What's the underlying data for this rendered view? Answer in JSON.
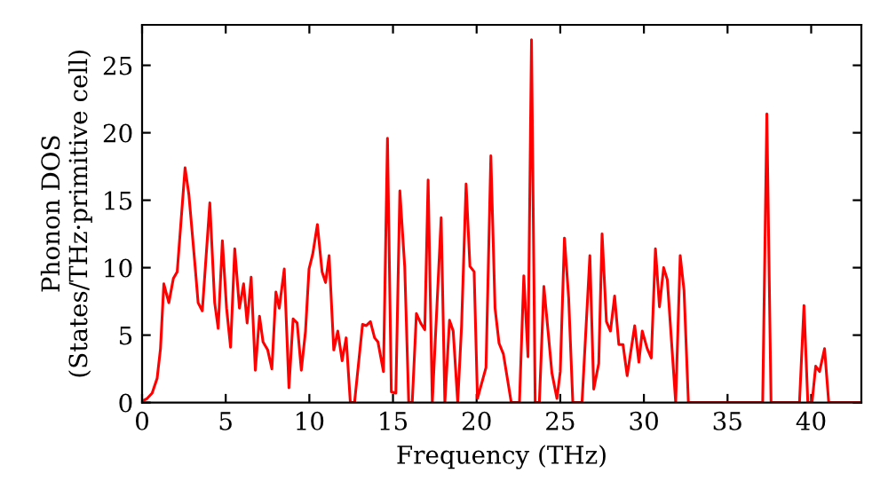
{
  "chart_data": {
    "type": "line",
    "xlabel": "Frequency (THz)",
    "ylabel": "Phonon DOS\n(States/THz·primitive cell)",
    "xlim": [
      0,
      43
    ],
    "ylim": [
      0,
      28
    ],
    "xticks": [
      0,
      5,
      10,
      15,
      20,
      25,
      30,
      35,
      40
    ],
    "yticks": [
      0,
      5,
      10,
      15,
      20,
      25
    ],
    "grid": false,
    "marker": "none",
    "line_style": "solid",
    "series": [
      {
        "color": "#ff0000",
        "x": [
          0,
          0.3,
          0.6,
          0.9,
          1.1,
          1.3,
          1.6,
          1.87,
          2.1,
          2.57,
          2.8,
          3.17,
          3.35,
          3.6,
          4.05,
          4.34,
          4.55,
          4.8,
          5.05,
          5.29,
          5.54,
          5.82,
          6.07,
          6.28,
          6.52,
          6.77,
          7.02,
          7.23,
          7.51,
          7.76,
          8.0,
          8.2,
          8.5,
          8.78,
          9.03,
          9.27,
          9.52,
          9.77,
          9.98,
          10.2,
          10.48,
          10.76,
          10.97,
          11.18,
          11.46,
          11.7,
          11.96,
          12.2,
          12.45,
          12.7,
          13.18,
          13.4,
          13.65,
          13.9,
          14.1,
          14.43,
          14.67,
          14.9,
          15.17,
          15.41,
          15.7,
          15.94,
          16.15,
          16.4,
          16.65,
          16.9,
          17.1,
          17.35,
          17.88,
          18.1,
          18.38,
          18.6,
          18.87,
          19.1,
          19.37,
          19.6,
          19.85,
          20.05,
          20.56,
          20.85,
          21.1,
          21.34,
          21.6,
          22.07,
          22.56,
          22.82,
          23.07,
          23.28,
          23.5,
          23.75,
          24.02,
          24.27,
          24.5,
          24.8,
          25.0,
          25.25,
          25.5,
          25.75,
          26.3,
          26.77,
          27.0,
          27.3,
          27.5,
          27.76,
          28.0,
          28.25,
          28.5,
          28.75,
          29.0,
          29.45,
          29.7,
          29.9,
          30.2,
          30.44,
          30.69,
          30.93,
          31.18,
          31.4,
          31.9,
          32.17,
          32.4,
          32.66,
          37.1,
          37.35,
          37.6,
          39.3,
          39.57,
          39.8,
          40.05,
          40.27,
          40.5,
          40.8,
          41.05,
          43
        ],
        "values": [
          0.1,
          0.3,
          0.7,
          1.8,
          4,
          8.8,
          7.4,
          9.2,
          9.7,
          17.4,
          15.4,
          10.1,
          7.4,
          6.8,
          14.8,
          7.4,
          5.5,
          12,
          7,
          4.1,
          11.4,
          7,
          8.8,
          5.9,
          9.3,
          2.4,
          6.4,
          4.5,
          3.9,
          2.5,
          8.2,
          7,
          9.9,
          1.1,
          6.2,
          5.9,
          2.4,
          5.3,
          9.9,
          11,
          13.2,
          9.7,
          8.9,
          10.9,
          3.9,
          5.3,
          3.1,
          4.8,
          0,
          0,
          5.8,
          5.7,
          6,
          4.8,
          4.5,
          2.3,
          19.6,
          0.8,
          0.7,
          15.7,
          10.1,
          0,
          0,
          6.6,
          5.9,
          5.4,
          16.5,
          0,
          13.7,
          0,
          6.1,
          5.3,
          0,
          5.7,
          16.2,
          10.1,
          9.7,
          0.3,
          2.6,
          18.3,
          7,
          4.4,
          3.6,
          0,
          0,
          9.4,
          3.4,
          26.9,
          0,
          0,
          8.6,
          5.3,
          2.2,
          0.3,
          2.3,
          12.2,
          7.8,
          0,
          0,
          10.9,
          1,
          2.9,
          12.5,
          6,
          5.3,
          7.9,
          4.3,
          4.3,
          2,
          5.7,
          3,
          5.3,
          4,
          3.3,
          11.4,
          7.1,
          10,
          9.1,
          0,
          10.9,
          8.3,
          0,
          0,
          21.4,
          0,
          0,
          7.2,
          0,
          0,
          2.7,
          2.3,
          4,
          0,
          0
        ]
      }
    ]
  }
}
